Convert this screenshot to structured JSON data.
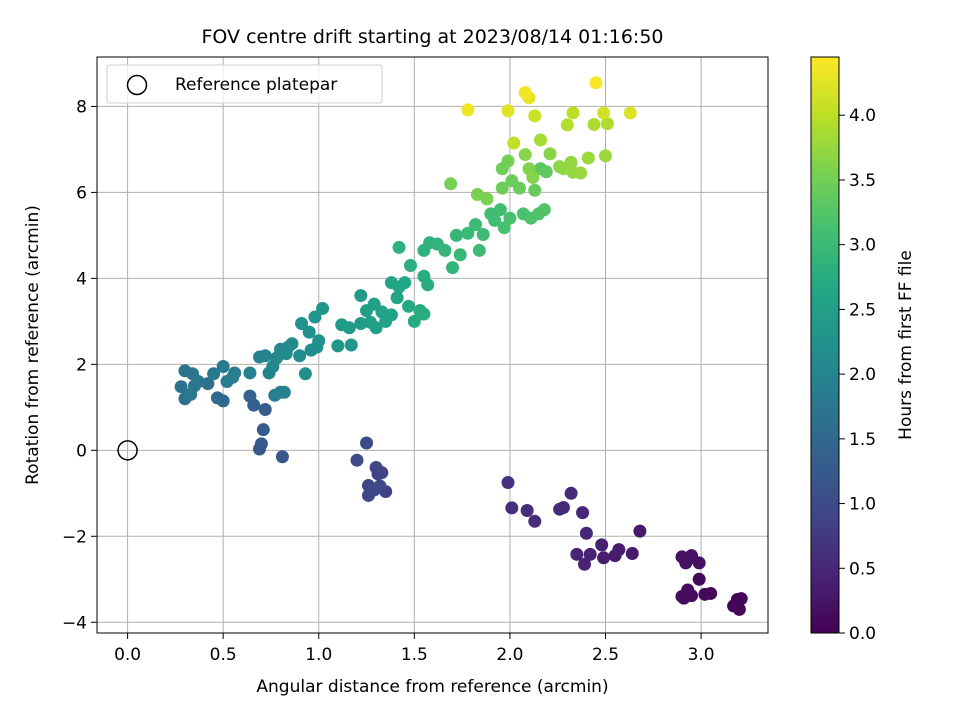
{
  "chart_data": {
    "type": "scatter",
    "title": "FOV centre drift starting at 2023/08/14 01:16:50",
    "xlabel": "Angular distance from reference (arcmin)",
    "ylabel": "Rotation from reference (arcmin)",
    "xlim": [
      -0.16,
      3.35
    ],
    "ylim": [
      -4.25,
      9.15
    ],
    "xticks": [
      0.0,
      0.5,
      1.0,
      1.5,
      2.0,
      2.5,
      3.0
    ],
    "xtick_labels": [
      "0.0",
      "0.5",
      "1.0",
      "1.5",
      "2.0",
      "2.5",
      "3.0"
    ],
    "yticks": [
      -4,
      -2,
      0,
      2,
      4,
      6,
      8
    ],
    "ytick_labels": [
      "−4",
      "−2",
      "0",
      "2",
      "4",
      "6",
      "8"
    ],
    "grid": true,
    "colormap": "viridis",
    "colorbar": {
      "label": "Hours from first FF file",
      "range": [
        0.0,
        4.45
      ],
      "ticks": [
        0.0,
        0.5,
        1.0,
        1.5,
        2.0,
        2.5,
        3.0,
        3.5,
        4.0
      ],
      "tick_labels": [
        "0.0",
        "0.5",
        "1.0",
        "1.5",
        "2.0",
        "2.5",
        "3.0",
        "3.5",
        "4.0"
      ]
    },
    "legend": {
      "placement": "top-left",
      "entries": [
        {
          "label": "Reference platepar",
          "marker": "open-circle"
        }
      ]
    },
    "reference_point": {
      "x": 0.0,
      "y": 0.0
    },
    "series": [
      {
        "points": [
          [
            3.19,
            -3.47,
            0.02
          ],
          [
            3.17,
            -3.62,
            0.03
          ],
          [
            3.2,
            -3.7,
            0.05
          ],
          [
            3.21,
            -3.45,
            0.06
          ],
          [
            3.02,
            -3.35,
            0.08
          ],
          [
            3.05,
            -3.33,
            0.09
          ],
          [
            2.99,
            -3.0,
            0.1
          ],
          [
            2.91,
            -3.44,
            0.12
          ],
          [
            2.93,
            -3.25,
            0.13
          ],
          [
            2.95,
            -3.38,
            0.14
          ],
          [
            2.9,
            -3.4,
            0.15
          ],
          [
            2.92,
            -2.62,
            0.16
          ],
          [
            2.99,
            -2.62,
            0.17
          ],
          [
            2.95,
            -2.45,
            0.18
          ],
          [
            2.9,
            -2.48,
            0.19
          ],
          [
            2.93,
            -2.55,
            0.2
          ],
          [
            2.68,
            -1.88,
            0.3
          ],
          [
            2.64,
            -2.4,
            0.32
          ],
          [
            2.55,
            -2.45,
            0.34
          ],
          [
            2.57,
            -2.31,
            0.36
          ],
          [
            2.49,
            -2.5,
            0.38
          ],
          [
            2.48,
            -2.2,
            0.4
          ],
          [
            2.39,
            -2.65,
            0.42
          ],
          [
            2.42,
            -2.42,
            0.43
          ],
          [
            2.35,
            -2.42,
            0.45
          ],
          [
            2.4,
            -1.93,
            0.47
          ],
          [
            2.38,
            -1.45,
            0.49
          ],
          [
            2.32,
            -1.0,
            0.51
          ],
          [
            2.28,
            -1.33,
            0.53
          ],
          [
            2.26,
            -1.37,
            0.55
          ],
          [
            2.13,
            -1.65,
            0.57
          ],
          [
            2.09,
            -1.4,
            0.59
          ],
          [
            2.01,
            -1.34,
            0.61
          ],
          [
            1.99,
            -0.75,
            0.63
          ],
          [
            1.35,
            -0.96,
            0.85
          ],
          [
            1.31,
            -0.55,
            0.87
          ],
          [
            1.33,
            -0.52,
            0.89
          ],
          [
            1.26,
            -0.82,
            0.91
          ],
          [
            1.3,
            -0.4,
            0.93
          ],
          [
            1.26,
            -1.05,
            0.95
          ],
          [
            1.29,
            -0.92,
            0.97
          ],
          [
            1.32,
            -0.83,
            0.99
          ],
          [
            1.2,
            -0.23,
            1.01
          ],
          [
            1.25,
            0.17,
            1.03
          ],
          [
            0.81,
            -0.15,
            1.2
          ],
          [
            0.69,
            0.03,
            1.22
          ],
          [
            0.7,
            0.15,
            1.24
          ],
          [
            0.71,
            0.48,
            1.26
          ],
          [
            0.72,
            0.95,
            1.3
          ],
          [
            0.66,
            1.05,
            1.35
          ],
          [
            0.64,
            1.26,
            1.4
          ],
          [
            0.5,
            1.15,
            1.5
          ],
          [
            0.47,
            1.22,
            1.52
          ],
          [
            0.42,
            1.55,
            1.6
          ],
          [
            0.3,
            1.2,
            1.65
          ],
          [
            0.28,
            1.48,
            1.68
          ],
          [
            0.3,
            1.85,
            1.7
          ],
          [
            0.34,
            1.78,
            1.72
          ],
          [
            0.35,
            1.5,
            1.74
          ],
          [
            0.33,
            1.3,
            1.76
          ],
          [
            0.37,
            1.6,
            1.78
          ],
          [
            0.45,
            1.78,
            1.8
          ],
          [
            0.5,
            1.95,
            1.82
          ],
          [
            0.52,
            1.6,
            1.84
          ],
          [
            0.55,
            1.7,
            1.86
          ],
          [
            0.56,
            1.8,
            1.88
          ],
          [
            0.77,
            1.28,
            1.9
          ],
          [
            0.8,
            1.35,
            1.92
          ],
          [
            0.82,
            1.35,
            1.94
          ],
          [
            0.64,
            1.8,
            1.96
          ],
          [
            0.69,
            2.17,
            1.98
          ],
          [
            0.72,
            2.2,
            2.0
          ],
          [
            0.74,
            1.8,
            2.02
          ],
          [
            0.76,
            1.95,
            2.04
          ],
          [
            0.78,
            2.15,
            2.06
          ],
          [
            0.8,
            2.35,
            2.08
          ],
          [
            0.83,
            2.25,
            2.1
          ],
          [
            0.84,
            2.4,
            2.12
          ],
          [
            0.86,
            2.48,
            2.14
          ],
          [
            0.9,
            2.2,
            2.16
          ],
          [
            0.93,
            1.78,
            2.18
          ],
          [
            0.96,
            2.33,
            2.2
          ],
          [
            0.99,
            2.4,
            2.22
          ],
          [
            1.0,
            2.55,
            2.24
          ],
          [
            0.91,
            2.95,
            2.26
          ],
          [
            0.95,
            2.75,
            2.28
          ],
          [
            0.98,
            3.1,
            2.3
          ],
          [
            1.02,
            3.3,
            2.32
          ],
          [
            1.1,
            2.43,
            2.34
          ],
          [
            1.17,
            2.45,
            2.36
          ],
          [
            1.12,
            2.92,
            2.38
          ],
          [
            1.16,
            2.85,
            2.4
          ],
          [
            1.22,
            2.95,
            2.42
          ],
          [
            1.22,
            3.6,
            2.44
          ],
          [
            1.25,
            3.25,
            2.46
          ],
          [
            1.27,
            2.98,
            2.48
          ],
          [
            1.29,
            3.4,
            2.5
          ],
          [
            1.3,
            2.85,
            2.52
          ],
          [
            1.33,
            3.22,
            2.54
          ],
          [
            1.35,
            3.0,
            2.56
          ],
          [
            1.38,
            3.15,
            2.58
          ],
          [
            1.38,
            3.9,
            2.6
          ],
          [
            1.41,
            3.55,
            2.62
          ],
          [
            1.42,
            3.8,
            2.64
          ],
          [
            1.45,
            3.9,
            2.66
          ],
          [
            1.47,
            3.35,
            2.68
          ],
          [
            1.5,
            3.0,
            2.7
          ],
          [
            1.53,
            3.25,
            2.72
          ],
          [
            1.55,
            3.17,
            2.74
          ],
          [
            1.57,
            3.85,
            2.76
          ],
          [
            1.55,
            4.05,
            2.78
          ],
          [
            1.48,
            4.3,
            2.8
          ],
          [
            1.42,
            4.72,
            2.82
          ],
          [
            1.55,
            4.65,
            2.84
          ],
          [
            1.58,
            4.83,
            2.86
          ],
          [
            1.62,
            4.8,
            2.88
          ],
          [
            1.66,
            4.65,
            2.9
          ],
          [
            1.7,
            4.25,
            2.92
          ],
          [
            1.72,
            5.0,
            2.94
          ],
          [
            1.74,
            4.55,
            2.96
          ],
          [
            1.78,
            5.05,
            2.98
          ],
          [
            1.82,
            5.25,
            3.0
          ],
          [
            1.84,
            4.65,
            3.02
          ],
          [
            1.86,
            5.02,
            3.04
          ],
          [
            1.9,
            5.5,
            3.06
          ],
          [
            1.92,
            5.35,
            3.08
          ],
          [
            1.95,
            5.6,
            3.1
          ],
          [
            1.97,
            5.18,
            3.12
          ],
          [
            2.0,
            5.4,
            3.14
          ],
          [
            2.07,
            5.5,
            3.16
          ],
          [
            2.11,
            5.4,
            3.18
          ],
          [
            2.15,
            5.5,
            3.2
          ],
          [
            2.18,
            5.6,
            3.22
          ],
          [
            2.16,
            6.55,
            3.3
          ],
          [
            2.19,
            6.48,
            3.35
          ],
          [
            2.13,
            6.05,
            3.4
          ],
          [
            2.05,
            6.1,
            3.42
          ],
          [
            2.01,
            6.27,
            3.44
          ],
          [
            1.96,
            6.1,
            3.46
          ],
          [
            1.96,
            6.55,
            3.48
          ],
          [
            1.99,
            6.73,
            3.5
          ],
          [
            1.69,
            6.2,
            3.52
          ],
          [
            1.83,
            5.95,
            3.54
          ],
          [
            1.88,
            5.85,
            3.56
          ],
          [
            2.1,
            6.55,
            3.6
          ],
          [
            2.12,
            6.35,
            3.62
          ],
          [
            2.08,
            6.88,
            3.64
          ],
          [
            2.21,
            6.9,
            3.66
          ],
          [
            2.26,
            6.6,
            3.68
          ],
          [
            2.28,
            6.55,
            3.7
          ],
          [
            2.32,
            6.7,
            3.72
          ],
          [
            2.33,
            6.47,
            3.74
          ],
          [
            2.37,
            6.45,
            3.76
          ],
          [
            2.41,
            6.8,
            3.78
          ],
          [
            2.5,
            6.85,
            3.8
          ],
          [
            2.16,
            7.22,
            3.85
          ],
          [
            2.44,
            7.58,
            3.9
          ],
          [
            2.51,
            7.6,
            3.92
          ],
          [
            2.3,
            7.57,
            3.95
          ],
          [
            2.33,
            7.85,
            4.0
          ],
          [
            2.02,
            7.15,
            4.05
          ],
          [
            2.13,
            7.78,
            4.1
          ],
          [
            2.49,
            7.85,
            4.15
          ],
          [
            2.63,
            7.85,
            4.2
          ],
          [
            1.99,
            7.9,
            4.25
          ],
          [
            2.1,
            8.2,
            4.3
          ],
          [
            1.78,
            7.92,
            4.35
          ],
          [
            2.08,
            8.32,
            4.38
          ],
          [
            2.45,
            8.55,
            4.42
          ]
        ]
      }
    ]
  }
}
